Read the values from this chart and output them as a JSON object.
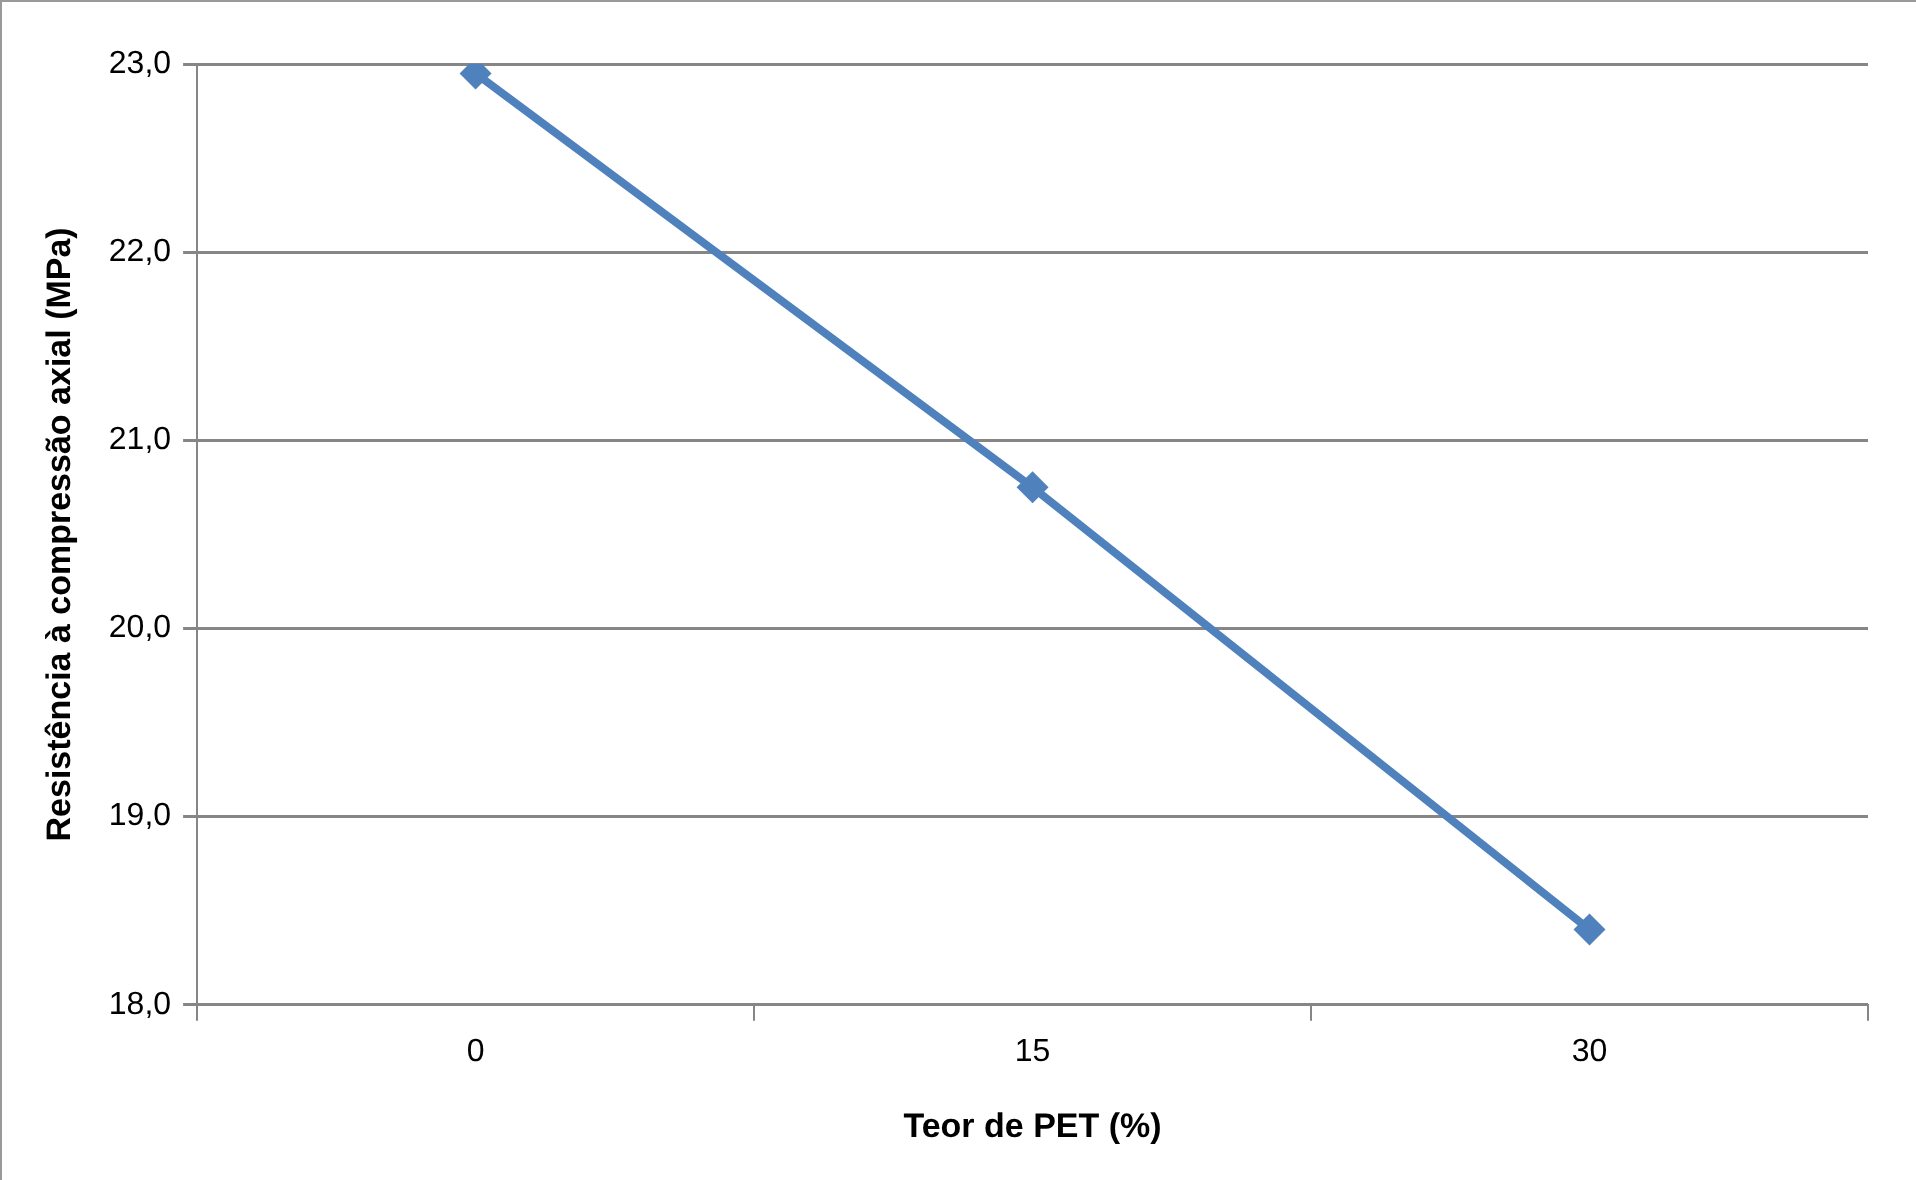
{
  "chart_data": {
    "type": "line",
    "xlabel": "Teor de PET (%)",
    "ylabel": "Resistência à compressão axial (MPa)",
    "categories": [
      "0",
      "15",
      "30"
    ],
    "series": [
      {
        "color": "#4f81bd",
        "values": [
          22.95,
          20.75,
          18.4
        ]
      }
    ],
    "ylim": [
      18,
      23
    ],
    "yticks": [
      {
        "value": 18,
        "label": "18,0"
      },
      {
        "value": 19,
        "label": "19,0"
      },
      {
        "value": 20,
        "label": "20,0"
      },
      {
        "value": 21,
        "label": "21,0"
      },
      {
        "value": 22,
        "label": "22,0"
      },
      {
        "value": 23,
        "label": "23,0"
      }
    ],
    "grid": "y",
    "legend": false,
    "marker": "diamond",
    "line_style": "solid"
  }
}
